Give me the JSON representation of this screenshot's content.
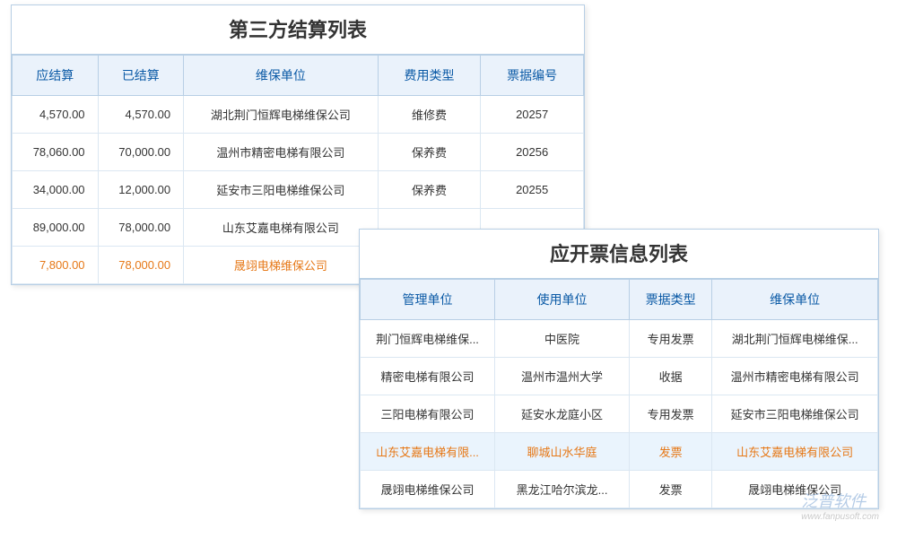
{
  "panel1": {
    "title": "第三方结算列表",
    "columns": [
      "应结算",
      "已结算",
      "维保单位",
      "费用类型",
      "票据编号"
    ],
    "col_widths": [
      "15%",
      "15%",
      "34%",
      "18%",
      "18%"
    ],
    "rows": [
      {
        "v": [
          "4,570.00",
          "4,570.00",
          "湖北荆门恒辉电梯维保公司",
          "维修费",
          "20257"
        ],
        "hl": false
      },
      {
        "v": [
          "78,060.00",
          "70,000.00",
          "温州市精密电梯有限公司",
          "保养费",
          "20256"
        ],
        "hl": false
      },
      {
        "v": [
          "34,000.00",
          "12,000.00",
          "延安市三阳电梯维保公司",
          "保养费",
          "20255"
        ],
        "hl": false
      },
      {
        "v": [
          "89,000.00",
          "78,000.00",
          "山东艾嘉电梯有限公司",
          "",
          ""
        ],
        "hl": false
      },
      {
        "v": [
          "7,800.00",
          "78,000.00",
          "晟翊电梯维保公司",
          "",
          ""
        ],
        "hl": true
      }
    ]
  },
  "panel2": {
    "title": "应开票信息列表",
    "columns": [
      "管理单位",
      "使用单位",
      "票据类型",
      "维保单位"
    ],
    "col_widths": [
      "26%",
      "26%",
      "16%",
      "32%"
    ],
    "rows": [
      {
        "v": [
          "荆门恒辉电梯维保...",
          "中医院",
          "专用发票",
          "湖北荆门恒辉电梯维保..."
        ],
        "hl": false,
        "sel": false
      },
      {
        "v": [
          "精密电梯有限公司",
          "温州市温州大学",
          "收据",
          "温州市精密电梯有限公司"
        ],
        "hl": false,
        "sel": false
      },
      {
        "v": [
          "三阳电梯有限公司",
          "延安水龙庭小区",
          "专用发票",
          "延安市三阳电梯维保公司"
        ],
        "hl": false,
        "sel": false
      },
      {
        "v": [
          "山东艾嘉电梯有限...",
          "聊城山水华庭",
          "发票",
          "山东艾嘉电梯有限公司"
        ],
        "hl": true,
        "sel": true
      },
      {
        "v": [
          "晟翊电梯维保公司",
          "黑龙江哈尔滨龙...",
          "发票",
          "晟翊电梯维保公司"
        ],
        "hl": false,
        "sel": false
      }
    ]
  },
  "watermark": {
    "main": "泛普软件",
    "sub": "www.fanpusoft.com"
  },
  "colors": {
    "border": "#b8cfe5",
    "header_bg": "#eaf2fb",
    "header_text": "#0b5aa6",
    "cell_border": "#dbe7f2",
    "highlight_text": "#e67817",
    "selected_bg": "#eaf4fd",
    "title_text": "#333333",
    "cell_text": "#333333"
  }
}
